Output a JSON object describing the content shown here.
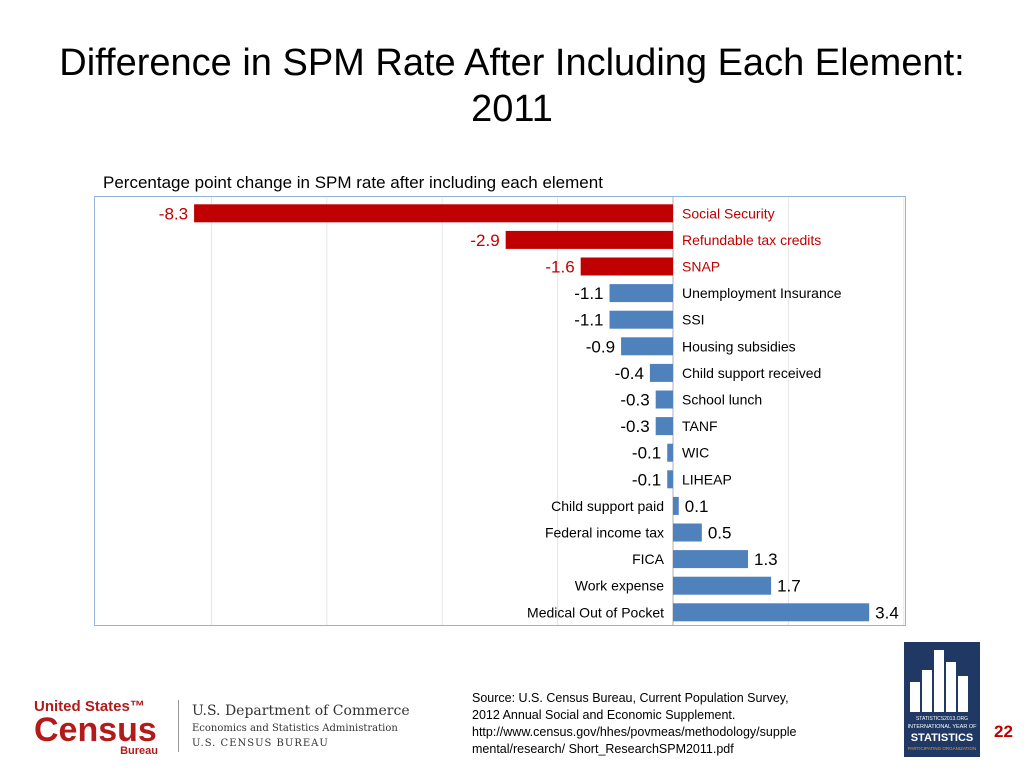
{
  "slide": {
    "title": "Difference in SPM Rate After Including Each Element: 2011",
    "page_number": "22",
    "source_lines": [
      "Source: U.S. Census Bureau, Current Population Survey,",
      "2012 Annual Social and Economic Supplement.",
      "http://www.census.gov/hhes/povmeas/methodology/supple",
      "mental/research/ Short_ResearchSPM2011.pdf"
    ]
  },
  "logos": {
    "census_us": "United States™",
    "census_word": "Census",
    "census_bureau": "Bureau",
    "dept_line1": "U.S. Department of Commerce",
    "dept_line2": "Economics and Statistics Administration",
    "dept_line3": "U.S. CENSUS BUREAU",
    "stats_line1": "STATISTICS2013.ORG",
    "stats_line2": "INTERNATIONAL YEAR OF",
    "stats_line3": "STATISTICS",
    "stats_line4": "PARTICIPATING ORGANIZATION"
  },
  "colors": {
    "highlight": "#c00000",
    "bar": "#4f81bd",
    "highlight_label": "#c00000",
    "border": "#95b3d7"
  },
  "chart_data": {
    "type": "bar",
    "orientation": "horizontal",
    "subtitle": "Percentage point change in SPM rate after including each element",
    "categories": [
      "Social Security",
      "Refundable tax credits",
      "SNAP",
      "Unemployment Insurance",
      "SSI",
      "Housing subsidies",
      "Child support received",
      "School lunch",
      "TANF",
      "WIC",
      "LIHEAP",
      "Child support paid",
      "Federal income tax",
      "FICA",
      "Work expense",
      "Medical Out of Pocket"
    ],
    "values": [
      -8.3,
      -2.9,
      -1.6,
      -1.1,
      -1.1,
      -0.9,
      -0.4,
      -0.3,
      -0.3,
      -0.1,
      -0.1,
      0.1,
      0.5,
      1.3,
      1.7,
      3.4
    ],
    "highlighted": [
      "Social Security",
      "Refundable tax credits",
      "SNAP"
    ],
    "xlim": [
      -10,
      4
    ],
    "grid": true
  }
}
